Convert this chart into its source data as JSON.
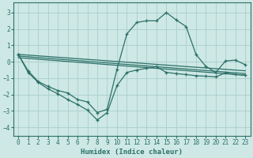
{
  "xlabel": "Humidex (Indice chaleur)",
  "background_color": "#cde8e5",
  "grid_color": "#aacfcc",
  "line_color": "#2d7068",
  "xlim": [
    -0.5,
    23.5
  ],
  "ylim": [
    -4.5,
    3.6
  ],
  "yticks": [
    -4,
    -3,
    -2,
    -1,
    0,
    1,
    2,
    3
  ],
  "xticks": [
    0,
    1,
    2,
    3,
    4,
    5,
    6,
    7,
    8,
    9,
    10,
    11,
    12,
    13,
    14,
    15,
    16,
    17,
    18,
    19,
    20,
    21,
    22,
    23
  ],
  "lines": [
    {
      "x": [
        0,
        1,
        2,
        3,
        4,
        5,
        6,
        7,
        8,
        9,
        10,
        11,
        12,
        13,
        14,
        15,
        16,
        17,
        18,
        19,
        20,
        21,
        22,
        23
      ],
      "y": [
        0.45,
        -0.65,
        -1.25,
        -1.65,
        -1.95,
        -2.3,
        -2.6,
        -2.95,
        -3.55,
        -3.1,
        -1.45,
        -0.65,
        -0.5,
        -0.4,
        -0.3,
        -0.65,
        -0.72,
        -0.78,
        -0.85,
        -0.88,
        -0.92,
        -0.68,
        -0.78,
        -0.82
      ],
      "marker": true
    },
    {
      "x": [
        0,
        1,
        2,
        3,
        4,
        5,
        6,
        7,
        8,
        9,
        10,
        11,
        12,
        13,
        14,
        15,
        16,
        17,
        18,
        19,
        20,
        21,
        22,
        23
      ],
      "y": [
        0.45,
        -0.55,
        -1.2,
        -1.5,
        -1.75,
        -1.9,
        -2.3,
        -2.45,
        -3.1,
        -2.9,
        -0.45,
        1.7,
        2.4,
        2.5,
        2.5,
        3.0,
        2.55,
        2.15,
        0.45,
        -0.28,
        -0.65,
        0.05,
        0.1,
        -0.18
      ],
      "marker": true
    },
    {
      "x": [
        0,
        23
      ],
      "y": [
        0.35,
        -0.72
      ],
      "marker": false
    },
    {
      "x": [
        0,
        23
      ],
      "y": [
        0.25,
        -0.82
      ],
      "marker": false
    },
    {
      "x": [
        0,
        23
      ],
      "y": [
        0.45,
        -0.55
      ],
      "marker": false
    }
  ]
}
